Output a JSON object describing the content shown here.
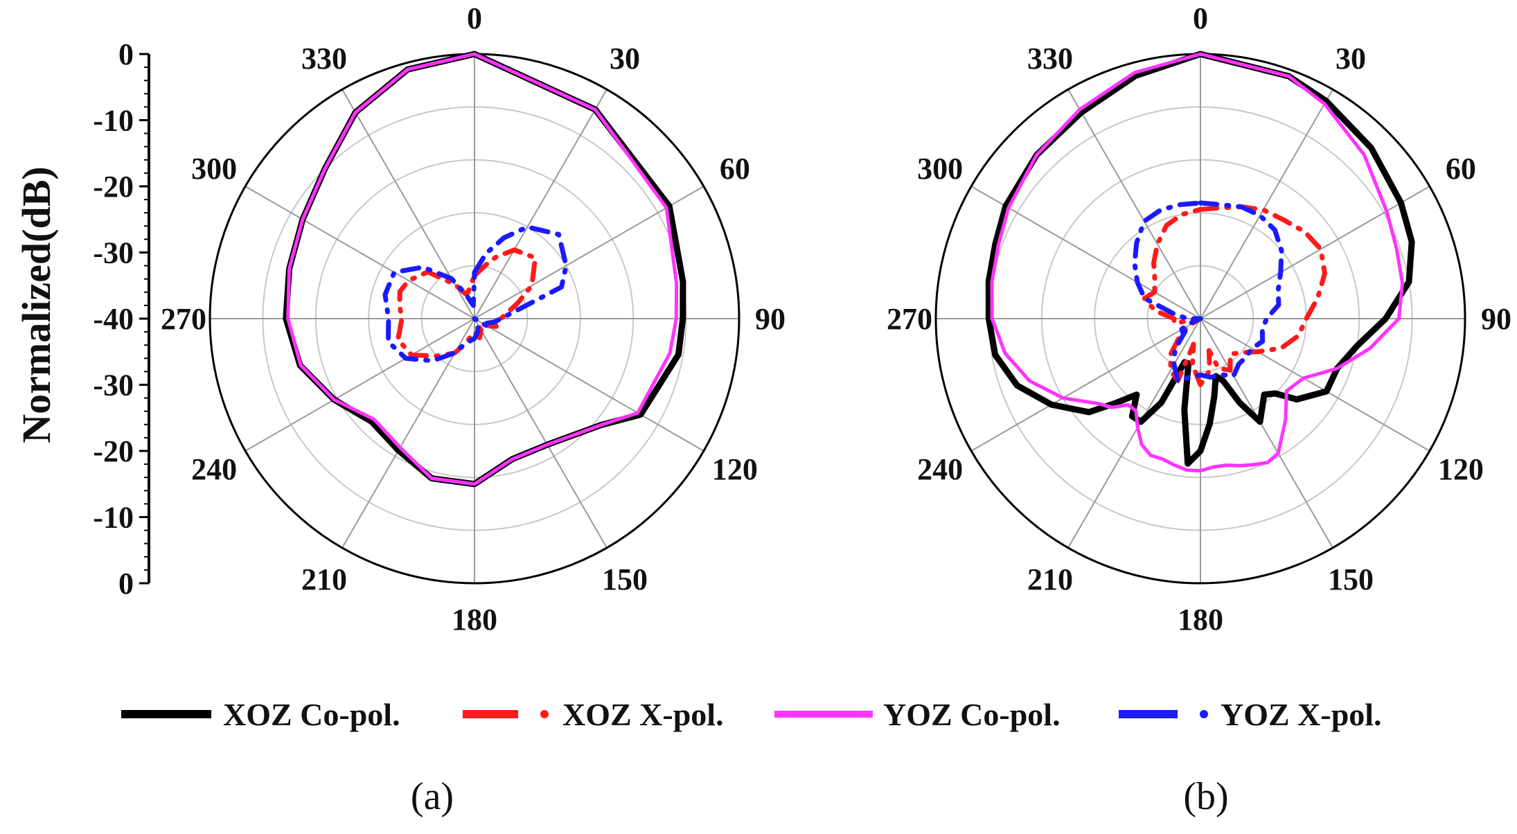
{
  "figure": {
    "panel_labels": [
      "(a)",
      "(b)"
    ]
  },
  "legend": [
    {
      "name": "XOZ Co-pol.",
      "color": "#000000",
      "style": "solid"
    },
    {
      "name": "XOZ X-pol.",
      "color": "#ff1a1a",
      "style": "dashdot"
    },
    {
      "name": "YOZ Co-pol.",
      "color": "#ff33ff",
      "style": "solid"
    },
    {
      "name": "YOZ X-pol.",
      "color": "#1a1aff",
      "style": "dashdot"
    }
  ],
  "chart_data": [
    {
      "type": "polar-line",
      "panel": "(a)",
      "title": "",
      "ylabel": "Normalized(dB)",
      "radial_range_db": [
        -40,
        0
      ],
      "radial_ticks": [
        "0",
        "-10",
        "-20",
        "-30",
        "-40",
        "-30",
        "-20",
        "-10",
        "0"
      ],
      "angle_ticks": [
        "0",
        "30",
        "60",
        "90",
        "120",
        "150",
        "180",
        "210",
        "240",
        "270",
        "300",
        "330"
      ],
      "series": [
        {
          "name": "XOZ Co-pol.",
          "angles": [
            0,
            30,
            60,
            80,
            90,
            100,
            120,
            130,
            150,
            165,
            180,
            195,
            210,
            225,
            240,
            255,
            270,
            285,
            300,
            315,
            330,
            345
          ],
          "values": [
            0,
            -3.5,
            -6,
            -8,
            -8.5,
            -8.7,
            -11,
            -15,
            -18,
            -18,
            -15,
            -15,
            -17,
            -18,
            -15.5,
            -12.7,
            -11.5,
            -11,
            -10,
            -8,
            -4,
            -1
          ]
        },
        {
          "name": "XOZ X-pol.",
          "angles": [
            0,
            15,
            20,
            30,
            45,
            60,
            70,
            90,
            100,
            110,
            120,
            130,
            150,
            165,
            180,
            200,
            210,
            225,
            240,
            255,
            260,
            270,
            280,
            290,
            300,
            315,
            330,
            340,
            345
          ],
          "values": [
            -33.5,
            -31,
            -30,
            -28,
            -27,
            -30,
            -33,
            -36,
            -37,
            -36.5,
            -38,
            -40,
            -38,
            -37,
            -38,
            -36,
            -34,
            -32,
            -29,
            -28,
            -28.5,
            -29,
            -28.5,
            -28,
            -28.5,
            -30,
            -34,
            -36,
            -36
          ]
        },
        {
          "name": "YOZ Co-pol.",
          "angles": [
            0,
            30,
            60,
            80,
            90,
            100,
            120,
            130,
            150,
            165,
            180,
            195,
            210,
            225,
            240,
            255,
            270,
            285,
            300,
            315,
            330,
            345
          ],
          "values": [
            0,
            -3.5,
            -6.5,
            -9,
            -9.5,
            -10,
            -11.5,
            -15,
            -18,
            -18,
            -15,
            -15,
            -17.5,
            -18.5,
            -15.5,
            -12.8,
            -11.8,
            -11,
            -10,
            -8,
            -4,
            -1
          ]
        },
        {
          "name": "YOZ X-pol.",
          "angles": [
            0,
            10,
            20,
            30,
            45,
            60,
            70,
            90,
            100,
            110,
            120,
            135,
            150,
            165,
            180,
            200,
            210,
            225,
            240,
            255,
            270,
            285,
            300,
            315,
            330,
            340,
            355
          ],
          "values": [
            -33,
            -30,
            -27,
            -24,
            -22,
            -24,
            -26,
            -36,
            -37,
            -38,
            -38,
            -40,
            -39,
            -38,
            -37,
            -36,
            -34,
            -31,
            -28,
            -26.5,
            -27,
            -26,
            -26,
            -29,
            -33,
            -36,
            -38
          ]
        }
      ]
    },
    {
      "type": "polar-line",
      "panel": "(b)",
      "title": "",
      "radial_range_db": [
        -40,
        0
      ],
      "angle_ticks": [
        "0",
        "30",
        "60",
        "90",
        "120",
        "150",
        "180",
        "210",
        "240",
        "270",
        "300",
        "330"
      ],
      "series": [
        {
          "name": "XOZ Co-pol.",
          "angles": [
            0,
            20,
            30,
            45,
            60,
            70,
            80,
            90,
            100,
            110,
            120,
            130,
            135,
            140,
            150,
            155,
            160,
            165,
            170,
            175,
            180,
            185,
            190,
            195,
            200,
            205,
            210,
            215,
            220,
            225,
            230,
            240,
            250,
            260,
            270,
            280,
            290,
            300,
            315,
            330,
            345
          ],
          "values": [
            0,
            -1,
            -2,
            -3.5,
            -5,
            -6,
            -8,
            -12,
            -16,
            -18,
            -18,
            -21,
            -24,
            -25,
            -22,
            -26,
            -30,
            -31,
            -28,
            -24,
            -20,
            -18,
            -26,
            -33,
            -33,
            -26,
            -22,
            -22,
            -25,
            -22,
            -18,
            -14,
            -10.5,
            -8.5,
            -8,
            -7.5,
            -7,
            -6,
            -5,
            -4,
            -2
          ]
        },
        {
          "name": "XOZ X-pol.",
          "angles": [
            0,
            10,
            20,
            30,
            40,
            50,
            60,
            70,
            80,
            90,
            100,
            110,
            120,
            130,
            140,
            150,
            160,
            165,
            170,
            180,
            190,
            195,
            200,
            210,
            220,
            230,
            240,
            250,
            260,
            270,
            280,
            290,
            300,
            310,
            320,
            330,
            340,
            350
          ],
          "values": [
            -23.5,
            -23,
            -22,
            -21,
            -20.5,
            -19.5,
            -19,
            -20,
            -22,
            -24,
            -25,
            -27,
            -30,
            -32,
            -33,
            -31,
            -32,
            -35,
            -32,
            -30,
            -33,
            -36,
            -30,
            -31,
            -33,
            -36,
            -38,
            -40,
            -36,
            -36,
            -33,
            -31,
            -32,
            -31,
            -29,
            -27,
            -25,
            -24
          ]
        },
        {
          "name": "YOZ Co-pol.",
          "angles": [
            0,
            20,
            30,
            45,
            60,
            70,
            80,
            90,
            100,
            110,
            120,
            130,
            140,
            150,
            155,
            160,
            165,
            170,
            175,
            180,
            185,
            190,
            195,
            200,
            205,
            210,
            215,
            220,
            225,
            230,
            240,
            250,
            260,
            270,
            280,
            290,
            300,
            315,
            330,
            345
          ],
          "values": [
            0,
            -1,
            -2.5,
            -5,
            -7.5,
            -8.5,
            -9,
            -10,
            -14,
            -18,
            -22,
            -23,
            -20,
            -16.5,
            -16,
            -16.5,
            -17,
            -17.5,
            -17.5,
            -17,
            -17,
            -17.5,
            -18,
            -18,
            -19,
            -21,
            -23,
            -23,
            -21,
            -20,
            -16,
            -12.5,
            -10,
            -8.5,
            -8,
            -7.5,
            -6.5,
            -5,
            -3.5,
            -1.5
          ]
        },
        {
          "name": "YOZ X-pol.",
          "angles": [
            0,
            10,
            20,
            30,
            40,
            50,
            60,
            70,
            80,
            90,
            100,
            110,
            120,
            130,
            140,
            150,
            160,
            170,
            180,
            190,
            200,
            210,
            220,
            230,
            240,
            250,
            260,
            270,
            280,
            290,
            300,
            310,
            320,
            330,
            340,
            350
          ],
          "values": [
            -22.5,
            -22.5,
            -22,
            -22,
            -22.5,
            -24,
            -26,
            -27.5,
            -28,
            -30,
            -30.5,
            -30,
            -31,
            -31,
            -31,
            -30,
            -31,
            -31,
            -31.5,
            -31,
            -30,
            -32,
            -34,
            -37,
            -36,
            -39,
            -40,
            -38,
            -36,
            -31,
            -29,
            -27,
            -25,
            -23,
            -22.5,
            -22.5
          ]
        }
      ]
    }
  ]
}
